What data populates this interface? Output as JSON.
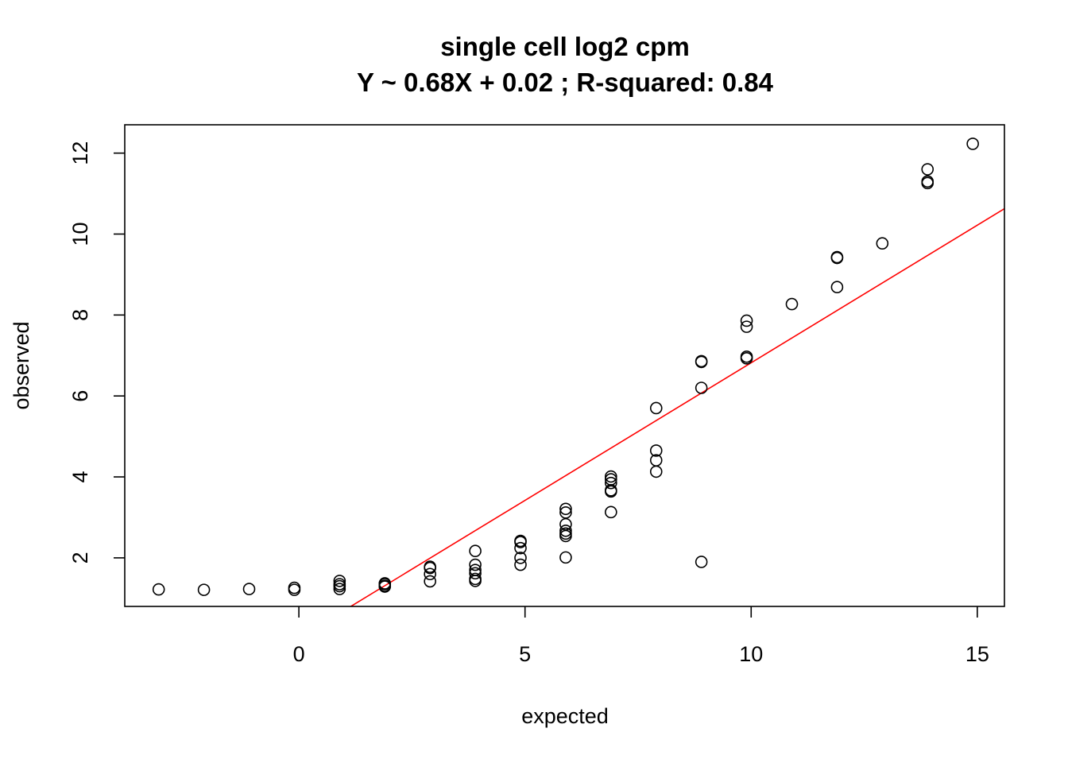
{
  "chart_data": {
    "type": "scatter",
    "title": "single cell log2 cpm",
    "subtitle": "Y ~ 0.68X + 0.02 ; R-squared: 0.84",
    "xlabel": "expected",
    "ylabel": "observed",
    "xlim": [
      -3.85,
      15.6
    ],
    "ylim": [
      0.8,
      12.7
    ],
    "xticks": [
      0,
      5,
      10,
      15
    ],
    "yticks": [
      2,
      4,
      6,
      8,
      10,
      12
    ],
    "grid": false,
    "colors": {
      "points": "#000000",
      "fit_line": "#ff0000",
      "frame": "#000000"
    },
    "fit_line": {
      "slope": 0.68,
      "intercept": 0.02,
      "color": "#ff0000"
    },
    "points": [
      [
        -3.1,
        1.22
      ],
      [
        -2.1,
        1.21
      ],
      [
        -1.1,
        1.23
      ],
      [
        -0.1,
        1.21
      ],
      [
        -0.1,
        1.26
      ],
      [
        0.9,
        1.23
      ],
      [
        0.9,
        1.3
      ],
      [
        0.9,
        1.35
      ],
      [
        0.9,
        1.43
      ],
      [
        1.9,
        1.29
      ],
      [
        1.9,
        1.31
      ],
      [
        1.9,
        1.35
      ],
      [
        1.9,
        1.37
      ],
      [
        2.9,
        1.42
      ],
      [
        2.9,
        1.6
      ],
      [
        2.9,
        1.75
      ],
      [
        2.9,
        1.78
      ],
      [
        3.9,
        1.43
      ],
      [
        3.9,
        1.48
      ],
      [
        3.9,
        1.62
      ],
      [
        3.9,
        1.7
      ],
      [
        3.9,
        1.83
      ],
      [
        3.9,
        2.17
      ],
      [
        4.9,
        1.83
      ],
      [
        4.9,
        2.0
      ],
      [
        4.9,
        2.24
      ],
      [
        4.9,
        2.39
      ],
      [
        4.9,
        2.42
      ],
      [
        5.9,
        2.01
      ],
      [
        5.9,
        2.54
      ],
      [
        5.9,
        2.6
      ],
      [
        5.9,
        2.67
      ],
      [
        5.9,
        2.83
      ],
      [
        5.9,
        3.12
      ],
      [
        5.9,
        3.21
      ],
      [
        6.9,
        3.13
      ],
      [
        6.9,
        3.64
      ],
      [
        6.9,
        3.67
      ],
      [
        6.9,
        3.85
      ],
      [
        6.9,
        3.94
      ],
      [
        6.9,
        4.01
      ],
      [
        7.9,
        4.13
      ],
      [
        7.9,
        4.41
      ],
      [
        7.9,
        4.65
      ],
      [
        7.9,
        5.7
      ],
      [
        8.9,
        1.9
      ],
      [
        8.9,
        6.2
      ],
      [
        8.9,
        6.84
      ],
      [
        8.9,
        6.86
      ],
      [
        9.9,
        6.93
      ],
      [
        9.9,
        6.97
      ],
      [
        9.9,
        7.71
      ],
      [
        9.9,
        7.86
      ],
      [
        10.9,
        8.27
      ],
      [
        11.9,
        8.69
      ],
      [
        11.9,
        9.41
      ],
      [
        11.9,
        9.43
      ],
      [
        12.9,
        9.77
      ],
      [
        13.9,
        11.26
      ],
      [
        13.9,
        11.3
      ],
      [
        13.9,
        11.6
      ],
      [
        14.9,
        12.23
      ]
    ]
  }
}
